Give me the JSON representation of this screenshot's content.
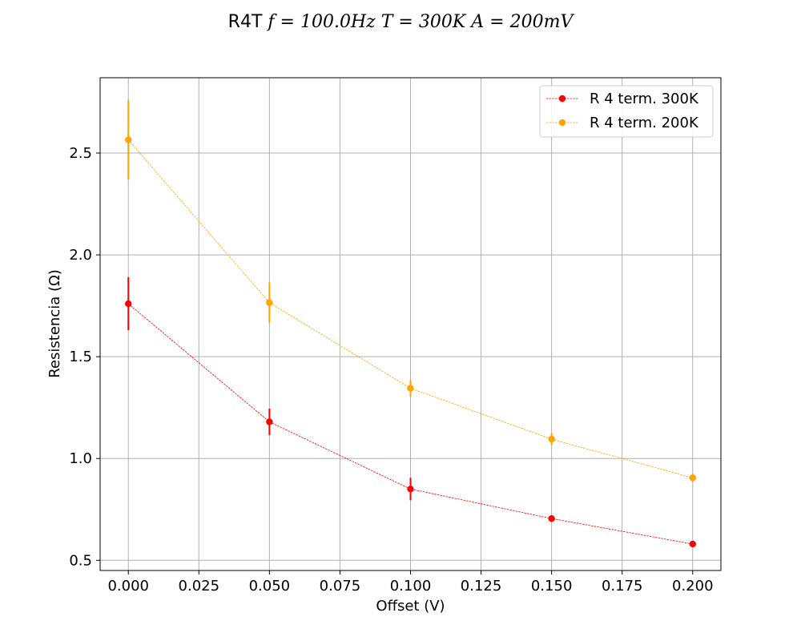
{
  "chart_data": {
    "type": "line",
    "title": {
      "prefix": "R4T ",
      "f_symbol": "f",
      "f_value": "100.0",
      "f_unit": "Hz",
      "T_symbol": "T",
      "T_value": "300",
      "T_unit": "K",
      "A_symbol": "A",
      "A_value": "200",
      "A_unit": "mV"
    },
    "xlabel": "Offset (V)",
    "ylabel": "Resistencia (Ω)",
    "xlim": [
      -0.01,
      0.21
    ],
    "ylim": [
      0.45,
      2.87
    ],
    "x_ticks": [
      0.0,
      0.025,
      0.05,
      0.075,
      0.1,
      0.125,
      0.15,
      0.175,
      0.2
    ],
    "x_tick_labels": [
      "0.000",
      "0.025",
      "0.050",
      "0.075",
      "0.100",
      "0.125",
      "0.150",
      "0.175",
      "0.200"
    ],
    "y_ticks": [
      0.5,
      1.0,
      1.5,
      2.0,
      2.5
    ],
    "y_tick_labels": [
      "0.5",
      "1.0",
      "1.5",
      "2.0",
      "2.5"
    ],
    "grid": true,
    "legend_position": "top-right",
    "x": [
      0.0,
      0.05,
      0.1,
      0.15,
      0.2
    ],
    "series": [
      {
        "name": "R 4 term. 300K",
        "color": "#ff0000",
        "values": [
          1.76,
          1.18,
          0.85,
          0.705,
          0.58
        ],
        "errors": [
          0.13,
          0.065,
          0.055,
          0.015,
          0.012
        ]
      },
      {
        "name": "R 4 term. 200K",
        "color": "#ffa500",
        "values": [
          2.565,
          1.765,
          1.345,
          1.095,
          0.905
        ],
        "errors": [
          0.195,
          0.1,
          0.04,
          0.03,
          0.02
        ]
      }
    ]
  }
}
